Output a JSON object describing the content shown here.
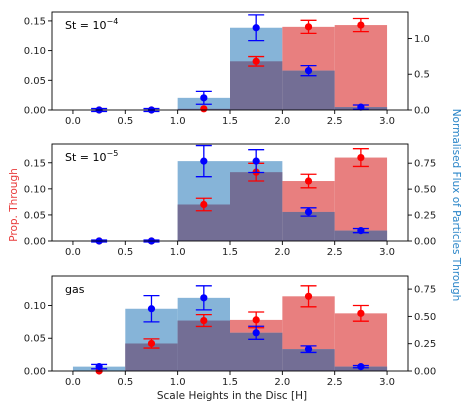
{
  "chart_data": {
    "type": "bar",
    "xlabel": "Scale Heights in the Disc [H]",
    "ylabel_left": "Prop. Through",
    "ylabel_right": "Normalised Flux of Particles Through",
    "xlim": [
      -0.2,
      3.2
    ],
    "bin_edges": [
      0,
      0.5,
      1.0,
      1.5,
      2.0,
      2.5,
      3.0
    ],
    "bin_centers": [
      0.25,
      0.75,
      1.25,
      1.75,
      2.25,
      2.75
    ],
    "x_ticks": [
      "0.0",
      "0.5",
      "1.0",
      "1.5",
      "2.0",
      "2.5",
      "3.0"
    ],
    "colors": {
      "prop_bars": "#e87f7f",
      "flux_bars": "#86b4d8",
      "overlap": "#736e95",
      "prop_points": "#ff0000",
      "flux_points": "#0000ff"
    },
    "panels": [
      {
        "label": "St = 10",
        "label_exp": "−4",
        "left_ylim": [
          0,
          0.165
        ],
        "left_ticks": [
          "0.00",
          "0.05",
          "0.10",
          "0.15"
        ],
        "right_ylim": [
          0,
          1.37
        ],
        "right_ticks": [
          "0.0",
          "0.5",
          "1.0"
        ],
        "prop_values": [
          0,
          0,
          0.002,
          0.082,
          0.14,
          0.143
        ],
        "prop_err": [
          0,
          0,
          0,
          0.008,
          0.011,
          0.011
        ],
        "flux_values": [
          0,
          0,
          0.17,
          1.15,
          0.55,
          0.04
        ],
        "flux_err": [
          0.02,
          0.02,
          0.09,
          0.18,
          0.07,
          0.03
        ]
      },
      {
        "label": "St = 10",
        "label_exp": "−5",
        "left_ylim": [
          0,
          0.186
        ],
        "left_ticks": [
          "0.00",
          "0.05",
          "0.10",
          "0.15"
        ],
        "right_ylim": [
          0,
          0.935
        ],
        "right_ticks": [
          "0.00",
          "0.25",
          "0.50",
          "0.75"
        ],
        "prop_values": [
          0,
          0,
          0.07,
          0.132,
          0.115,
          0.16
        ],
        "prop_err": [
          0,
          0,
          0.012,
          0.017,
          0.013,
          0.017
        ],
        "flux_values": [
          0,
          0,
          0.77,
          0.77,
          0.28,
          0.1
        ],
        "flux_err": [
          0.01,
          0.01,
          0.15,
          0.11,
          0.04,
          0.02
        ]
      },
      {
        "label": "gas",
        "label_exp": "",
        "left_ylim": [
          0,
          0.145
        ],
        "left_ticks": [
          "0.00",
          "0.05",
          "0.10"
        ],
        "right_ylim": [
          0,
          0.87
        ],
        "right_ticks": [
          "0.00",
          "0.25",
          "0.50",
          "0.75"
        ],
        "prop_values": [
          0,
          0.042,
          0.077,
          0.078,
          0.114,
          0.088
        ],
        "prop_err": [
          0,
          0.007,
          0.009,
          0.012,
          0.016,
          0.012
        ],
        "flux_values": [
          0.04,
          0.57,
          0.67,
          0.35,
          0.2,
          0.04
        ],
        "flux_err": [
          0.02,
          0.12,
          0.11,
          0.06,
          0.03,
          0.01
        ]
      }
    ]
  }
}
